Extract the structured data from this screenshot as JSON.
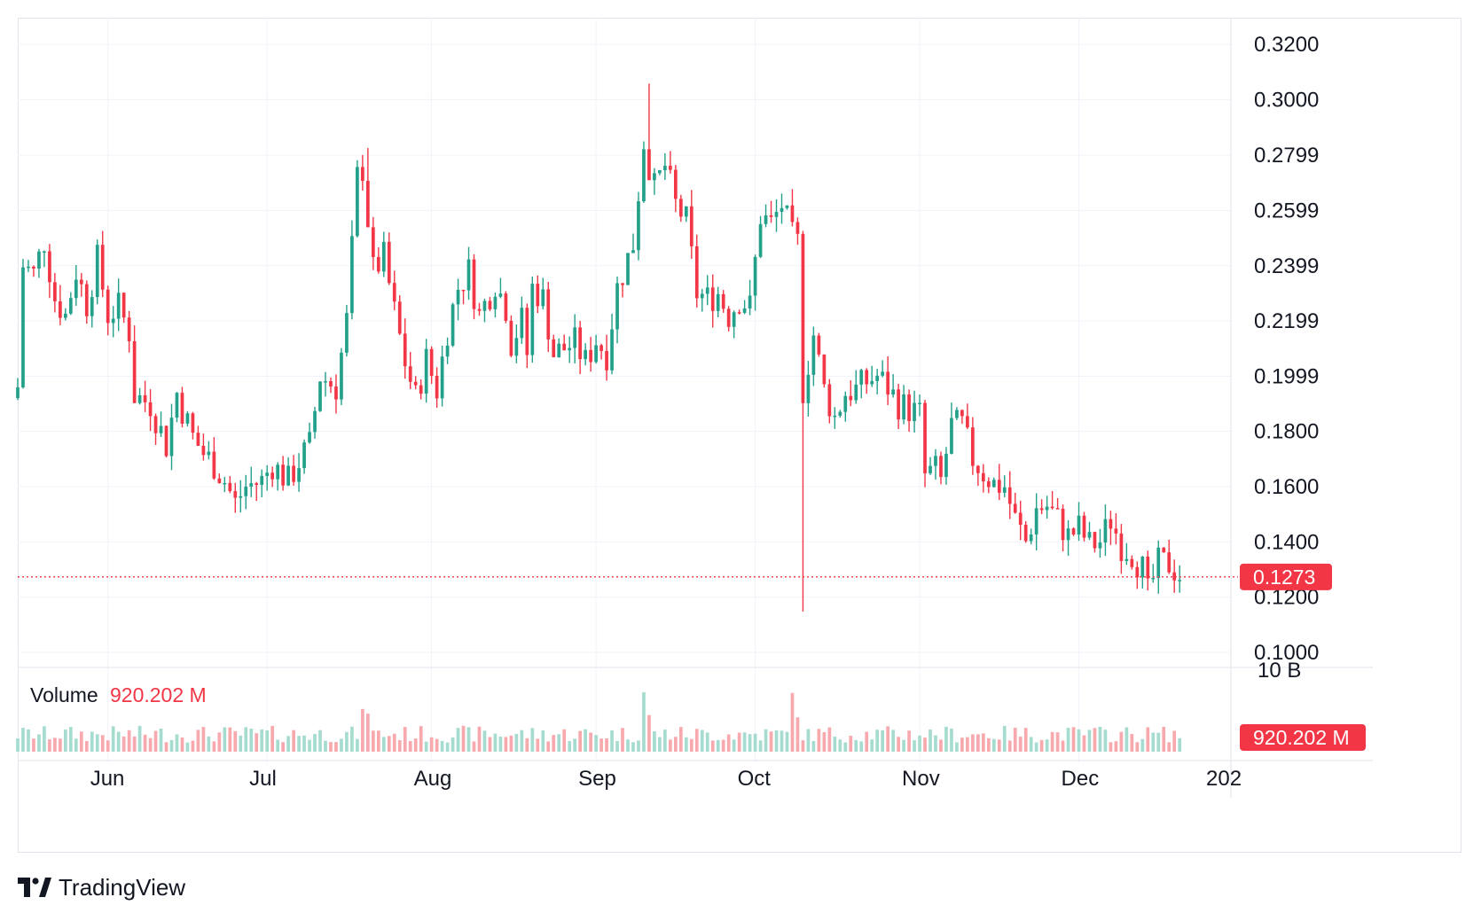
{
  "brand": {
    "name": "TradingView",
    "logo_icon": "tradingview-logo-icon"
  },
  "colors": {
    "up": "#22a08a",
    "down": "#f23645",
    "up_volume": "#a6dcd0",
    "down_volume": "#f7a9ae",
    "grid": "#f0f3fa",
    "border": "#e0e3eb"
  },
  "volume": {
    "label": "Volume",
    "value": "920.202 M",
    "axis_top_label": "10 B",
    "badge": "920.202 M"
  },
  "last_price": {
    "value": 0.1273,
    "label": "0.1273"
  },
  "chart_data": {
    "type": "candlestick",
    "y_ticks": [
      "0.3200",
      "0.3000",
      "0.2799",
      "0.2599",
      "0.2399",
      "0.2199",
      "0.1999",
      "0.1800",
      "0.1600",
      "0.1400",
      "0.1200",
      "0.1000"
    ],
    "y_tick_values": [
      0.32,
      0.3,
      0.2799,
      0.2599,
      0.2399,
      0.2199,
      0.1999,
      0.18,
      0.16,
      0.14,
      0.12,
      0.1
    ],
    "ylim": [
      0.0955,
      0.329
    ],
    "x_labels": [
      "Jun",
      "Jul",
      "Aug",
      "Sep",
      "Oct",
      "Nov",
      "Dec",
      "202"
    ],
    "x_label_days": [
      17,
      47,
      78,
      109,
      139,
      170,
      200,
      230
    ],
    "start_date": "2025-05-15",
    "end_day": 230,
    "anchors": [
      [
        0,
        0.196
      ],
      [
        1,
        0.24
      ],
      [
        3,
        0.237
      ],
      [
        5,
        0.249
      ],
      [
        7,
        0.228
      ],
      [
        9,
        0.222
      ],
      [
        11,
        0.238
      ],
      [
        13,
        0.226
      ],
      [
        15,
        0.242
      ],
      [
        17,
        0.222
      ],
      [
        19,
        0.225
      ],
      [
        21,
        0.216
      ],
      [
        22,
        0.193
      ],
      [
        25,
        0.19
      ],
      [
        28,
        0.175
      ],
      [
        30,
        0.194
      ],
      [
        31,
        0.188
      ],
      [
        33,
        0.178
      ],
      [
        35,
        0.172
      ],
      [
        37,
        0.168
      ],
      [
        39,
        0.162
      ],
      [
        41,
        0.154
      ],
      [
        43,
        0.16
      ],
      [
        46,
        0.162
      ],
      [
        48,
        0.168
      ],
      [
        51,
        0.162
      ],
      [
        53,
        0.169
      ],
      [
        55,
        0.175
      ],
      [
        57,
        0.2
      ],
      [
        60,
        0.196
      ],
      [
        62,
        0.22
      ],
      [
        64,
        0.272
      ],
      [
        65,
        0.275
      ],
      [
        67,
        0.238
      ],
      [
        69,
        0.243
      ],
      [
        71,
        0.223
      ],
      [
        73,
        0.205
      ],
      [
        75,
        0.192
      ],
      [
        77,
        0.206
      ],
      [
        79,
        0.195
      ],
      [
        81,
        0.217
      ],
      [
        83,
        0.232
      ],
      [
        85,
        0.238
      ],
      [
        87,
        0.222
      ],
      [
        90,
        0.234
      ],
      [
        92,
        0.225
      ],
      [
        93,
        0.212
      ],
      [
        95,
        0.22
      ],
      [
        96,
        0.208
      ],
      [
        97,
        0.232
      ],
      [
        99,
        0.228
      ],
      [
        101,
        0.208
      ],
      [
        103,
        0.21
      ],
      [
        105,
        0.212
      ],
      [
        107,
        0.205
      ],
      [
        109,
        0.213
      ],
      [
        111,
        0.208
      ],
      [
        113,
        0.232
      ],
      [
        116,
        0.248
      ],
      [
        118,
        0.285
      ],
      [
        120,
        0.268
      ],
      [
        122,
        0.276
      ],
      [
        124,
        0.262
      ],
      [
        126,
        0.256
      ],
      [
        128,
        0.23
      ],
      [
        130,
        0.228
      ],
      [
        132,
        0.23
      ],
      [
        134,
        0.222
      ],
      [
        136,
        0.228
      ],
      [
        138,
        0.225
      ],
      [
        140,
        0.258
      ],
      [
        142,
        0.255
      ],
      [
        144,
        0.262
      ],
      [
        146,
        0.25
      ],
      [
        147,
        0.248
      ],
      [
        148,
        0.195
      ],
      [
        150,
        0.215
      ],
      [
        152,
        0.195
      ],
      [
        154,
        0.185
      ],
      [
        156,
        0.194
      ],
      [
        158,
        0.195
      ],
      [
        160,
        0.198
      ],
      [
        162,
        0.2
      ],
      [
        164,
        0.196
      ],
      [
        166,
        0.19
      ],
      [
        168,
        0.188
      ],
      [
        170,
        0.186
      ],
      [
        171,
        0.164
      ],
      [
        173,
        0.166
      ],
      [
        174,
        0.162
      ],
      [
        176,
        0.182
      ],
      [
        178,
        0.182
      ],
      [
        180,
        0.17
      ],
      [
        182,
        0.165
      ],
      [
        184,
        0.161
      ],
      [
        186,
        0.16
      ],
      [
        188,
        0.148
      ],
      [
        190,
        0.14
      ],
      [
        192,
        0.152
      ],
      [
        194,
        0.153
      ],
      [
        196,
        0.148
      ],
      [
        198,
        0.142
      ],
      [
        200,
        0.145
      ],
      [
        202,
        0.139
      ],
      [
        204,
        0.14
      ],
      [
        206,
        0.148
      ],
      [
        208,
        0.139
      ],
      [
        210,
        0.136
      ],
      [
        212,
        0.13
      ],
      [
        213,
        0.121
      ],
      [
        215,
        0.132
      ],
      [
        217,
        0.132
      ],
      [
        219,
        0.128
      ]
    ],
    "spikes": [
      {
        "day": 148,
        "high": 0.2525,
        "low": 0.1148
      },
      {
        "day": 119,
        "high": 0.3058,
        "low": 0.276
      },
      {
        "day": 66,
        "high": 0.2825,
        "low": 0.257
      }
    ],
    "volume_spikes": [
      {
        "day": 65,
        "value": 0.56
      },
      {
        "day": 118,
        "value": 0.78
      },
      {
        "day": 146,
        "value": 0.77
      },
      {
        "day": 119,
        "value": 0.48
      },
      {
        "day": 147,
        "value": 0.45
      },
      {
        "day": 66,
        "value": 0.5
      }
    ]
  }
}
